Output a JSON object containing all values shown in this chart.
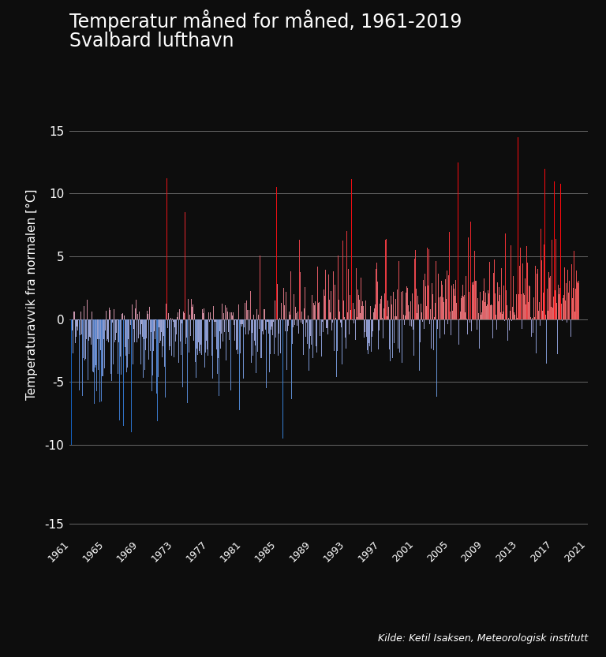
{
  "title_line1": "Temperatur måned for måned, 1961-2019",
  "title_line2": "Svalbard lufthavn",
  "ylabel": "Temperaturavvik fra normalen [°C]",
  "source": "Kilde: Ketil Isaksen, Meteorologisk institutt",
  "start_year": 1961,
  "end_year": 2019,
  "ylim_plot": [
    -12,
    16
  ],
  "yticks_main": [
    15,
    10,
    5,
    0,
    -5,
    -10
  ],
  "ytick_bottom": -15,
  "xtick_years": [
    1961,
    1965,
    1969,
    1973,
    1977,
    1981,
    1985,
    1989,
    1993,
    1997,
    2001,
    2005,
    2009,
    2013,
    2017,
    2021
  ],
  "background_color": "#0d0d0d",
  "text_color": "#ffffff",
  "grid_color": "#666666",
  "title_fontsize": 17,
  "label_fontsize": 11,
  "tick_fontsize": 11,
  "source_fontsize": 9
}
